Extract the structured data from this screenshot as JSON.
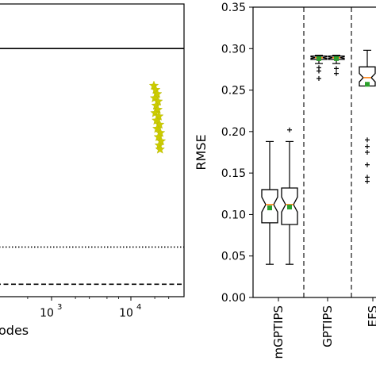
{
  "chart_data": [
    {
      "type": "scatter",
      "title": "",
      "xlabel_fragment": "odes",
      "xscale": "log",
      "xticks": [
        {
          "value": 1000,
          "base": "10",
          "exp": "3"
        },
        {
          "value": 10000,
          "base": "10",
          "exp": "4"
        }
      ],
      "reference_lines": [
        {
          "style": "solid",
          "y": 0.3
        },
        {
          "style": "dotted",
          "y": 0.06
        },
        {
          "style": "dashed",
          "y": 0.015
        }
      ],
      "series": [
        {
          "marker": "star",
          "color": "#cccc00",
          "points": [
            {
              "x": 19500,
              "y": 0.255
            },
            {
              "x": 20500,
              "y": 0.25
            },
            {
              "x": 21500,
              "y": 0.245
            },
            {
              "x": 20000,
              "y": 0.24
            },
            {
              "x": 22000,
              "y": 0.236
            },
            {
              "x": 20800,
              "y": 0.231
            },
            {
              "x": 21800,
              "y": 0.226
            },
            {
              "x": 20200,
              "y": 0.222
            },
            {
              "x": 22500,
              "y": 0.218
            },
            {
              "x": 21000,
              "y": 0.213
            },
            {
              "x": 23000,
              "y": 0.208
            },
            {
              "x": 21500,
              "y": 0.203
            },
            {
              "x": 23500,
              "y": 0.198
            },
            {
              "x": 22300,
              "y": 0.193
            },
            {
              "x": 24000,
              "y": 0.188
            },
            {
              "x": 22800,
              "y": 0.183
            },
            {
              "x": 23300,
              "y": 0.178
            }
          ]
        }
      ]
    },
    {
      "type": "box",
      "title": "",
      "ylabel": "RMSE",
      "ylim": [
        0.0,
        0.35
      ],
      "yticks": [
        "0.00",
        "0.05",
        "0.10",
        "0.15",
        "0.20",
        "0.25",
        "0.30",
        "0.35"
      ],
      "group_labels": [
        "mGPTIPS",
        "GPTIPS",
        "EFS"
      ],
      "mean_marker_color": "#2ca02c",
      "median_color": "#ff7f0e",
      "boxes": [
        {
          "group": 0,
          "q1": 0.09,
          "median": 0.112,
          "q3": 0.13,
          "whisker_low": 0.04,
          "whisker_high": 0.188,
          "notch_low": 0.103,
          "notch_high": 0.121,
          "mean": 0.108,
          "outliers": []
        },
        {
          "group": 0,
          "q1": 0.088,
          "median": 0.112,
          "q3": 0.132,
          "whisker_low": 0.04,
          "whisker_high": 0.188,
          "notch_low": 0.103,
          "notch_high": 0.121,
          "mean": 0.109,
          "outliers": [
            0.202
          ]
        },
        {
          "group": 1,
          "q1": 0.287,
          "median": 0.289,
          "q3": 0.291,
          "whisker_low": 0.282,
          "whisker_high": 0.292,
          "notch_low": 0.288,
          "notch_high": 0.29,
          "mean": 0.288,
          "outliers": [
            0.277,
            0.273,
            0.264
          ]
        },
        {
          "group": 1,
          "q1": 0.287,
          "median": 0.289,
          "q3": 0.291,
          "whisker_low": 0.282,
          "whisker_high": 0.292,
          "notch_low": 0.288,
          "notch_high": 0.29,
          "mean": 0.288,
          "outliers": [
            0.276,
            0.27
          ]
        },
        {
          "group": 2,
          "q1": 0.255,
          "median": 0.265,
          "q3": 0.278,
          "whisker_low": 0.255,
          "whisker_high": 0.298,
          "notch_low": 0.26,
          "notch_high": 0.27,
          "mean": 0.257,
          "outliers": [
            0.19,
            0.182,
            0.175,
            0.16,
            0.145,
            0.14
          ]
        }
      ]
    }
  ]
}
